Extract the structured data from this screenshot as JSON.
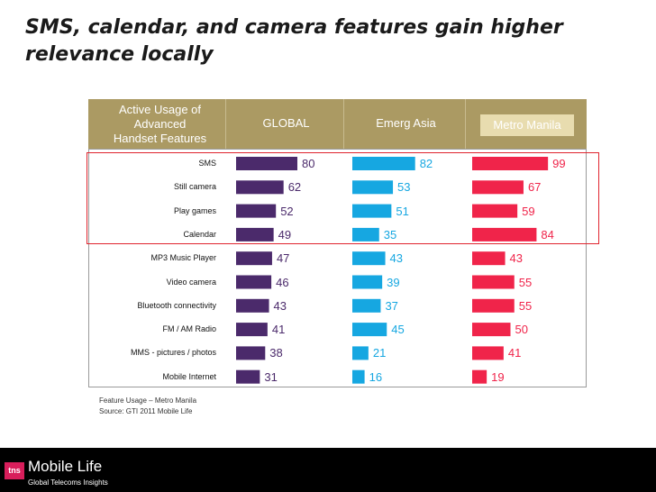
{
  "title": "SMS, calendar, and camera features gain higher relevance locally",
  "header": {
    "first_column": [
      "Active Usage of",
      "Advanced",
      "Handset Features"
    ],
    "columns": [
      "GLOBAL",
      "Emerg Asia",
      "Metro Manila"
    ]
  },
  "colors": {
    "global": "#4b2a6b",
    "emerg_asia": "#16a7e1",
    "metro_manila": "#f0244a",
    "header_bg": "#ab9a63",
    "highlight": "#e0242e"
  },
  "chart_data": {
    "type": "bar",
    "title": "Active Usage of Advanced Handset Features",
    "categories": [
      "SMS",
      "Still camera",
      "Play games",
      "Calendar",
      "MP3 Music Player",
      "Video camera",
      "Bluetooth connectivity",
      "FM / AM Radio",
      "MMS - pictures / photos",
      "Mobile Internet"
    ],
    "series": [
      {
        "name": "GLOBAL",
        "values": [
          80,
          62,
          52,
          49,
          47,
          46,
          43,
          41,
          38,
          31
        ]
      },
      {
        "name": "Emerg Asia",
        "values": [
          82,
          53,
          51,
          35,
          43,
          39,
          37,
          45,
          21,
          16
        ]
      },
      {
        "name": "Metro Manila",
        "values": [
          99,
          67,
          59,
          84,
          43,
          55,
          55,
          50,
          41,
          19
        ]
      }
    ],
    "xlim": [
      0,
      100
    ]
  },
  "footnotes": [
    "Feature Usage – Metro Manila",
    "Source:  GTI 2011 Mobile Life"
  ],
  "footer": {
    "logo_mark": "tns",
    "brand": "Mobile Life",
    "tagline": "Global Telecoms Insights"
  }
}
